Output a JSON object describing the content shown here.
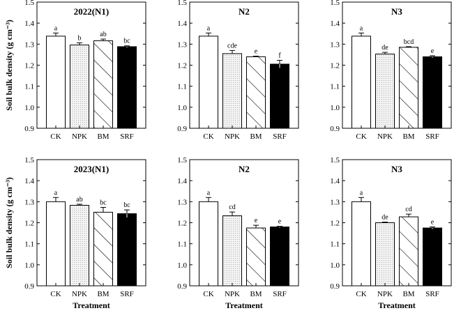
{
  "figure": {
    "ylabel": "Soil bulk density (g cm⁻³)",
    "xlabel": "Treatment"
  },
  "colors": {
    "CK": "#ffffff",
    "NPK": "#f4f4f4",
    "BM": "#ffffff",
    "SRF": "#000000",
    "stroke": "#000000"
  },
  "chart_data": [
    {
      "type": "bar",
      "title": "2022(N1)",
      "year": "2022",
      "nitrogen_level": "N1",
      "categories": [
        "CK",
        "NPK",
        "BM",
        "SRF"
      ],
      "values": [
        1.338,
        1.296,
        1.316,
        1.288
      ],
      "errors": [
        0.015,
        0.01,
        0.008,
        0.004
      ],
      "labels": [
        "a",
        "b",
        "ab",
        "bc"
      ],
      "ylim": [
        0.9,
        1.5
      ],
      "yticks": [
        "0.9",
        "1.0",
        "1.1",
        "1.2",
        "1.3",
        "1.4",
        "1.5"
      ],
      "ylabel": "Soil bulk density (g cm⁻³)",
      "xlabel": ""
    },
    {
      "type": "bar",
      "title": "N2",
      "year": "2022",
      "nitrogen_level": "N2",
      "categories": [
        "CK",
        "NPK",
        "BM",
        "SRF"
      ],
      "values": [
        1.338,
        1.255,
        1.24,
        1.205
      ],
      "errors": [
        0.015,
        0.015,
        0.003,
        0.018
      ],
      "labels": [
        "a",
        "cde",
        "e",
        "f"
      ],
      "ylim": [
        0.9,
        1.5
      ],
      "yticks": [
        "0.9",
        "1.0",
        "1.1",
        "1.2",
        "1.3",
        "1.4",
        "1.5"
      ],
      "ylabel": "",
      "xlabel": ""
    },
    {
      "type": "bar",
      "title": "N3",
      "year": "2022",
      "nitrogen_level": "N3",
      "categories": [
        "CK",
        "NPK",
        "BM",
        "SRF"
      ],
      "values": [
        1.338,
        1.253,
        1.285,
        1.24
      ],
      "errors": [
        0.015,
        0.008,
        0.003,
        0.005
      ],
      "labels": [
        "a",
        "de",
        "bcd",
        "e"
      ],
      "ylim": [
        0.9,
        1.5
      ],
      "yticks": [
        "0.9",
        "1.0",
        "1.1",
        "1.2",
        "1.3",
        "1.4",
        "1.5"
      ],
      "ylabel": "",
      "xlabel": ""
    },
    {
      "type": "bar",
      "title": "2023(N1)",
      "year": "2023",
      "nitrogen_level": "N1",
      "categories": [
        "CK",
        "NPK",
        "BM",
        "SRF"
      ],
      "values": [
        1.3,
        1.283,
        1.25,
        1.243
      ],
      "errors": [
        0.02,
        0.005,
        0.023,
        0.018
      ],
      "labels": [
        "a",
        "ab",
        "bc",
        "bc"
      ],
      "ylim": [
        0.9,
        1.5
      ],
      "yticks": [
        "0.9",
        "1.0",
        "1.1",
        "1.2",
        "1.3",
        "1.4",
        "1.5"
      ],
      "ylabel": "Soil bulk density (g cm⁻³)",
      "xlabel": "Treatment"
    },
    {
      "type": "bar",
      "title": "N2",
      "year": "2023",
      "nitrogen_level": "N2",
      "categories": [
        "CK",
        "NPK",
        "BM",
        "SRF"
      ],
      "values": [
        1.3,
        1.233,
        1.175,
        1.18
      ],
      "errors": [
        0.02,
        0.018,
        0.013,
        0.003
      ],
      "labels": [
        "a",
        "cd",
        "e",
        "e"
      ],
      "ylim": [
        0.9,
        1.5
      ],
      "yticks": [
        "0.9",
        "1.0",
        "1.1",
        "1.2",
        "1.3",
        "1.4",
        "1.5"
      ],
      "ylabel": "",
      "xlabel": "Treatment"
    },
    {
      "type": "bar",
      "title": "N3",
      "year": "2023",
      "nitrogen_level": "N3",
      "categories": [
        "CK",
        "NPK",
        "BM",
        "SRF"
      ],
      "values": [
        1.3,
        1.2,
        1.228,
        1.175
      ],
      "errors": [
        0.02,
        0.003,
        0.013,
        0.005
      ],
      "labels": [
        "a",
        "de",
        "cd",
        "e"
      ],
      "ylim": [
        0.9,
        1.5
      ],
      "yticks": [
        "0.9",
        "1.0",
        "1.1",
        "1.2",
        "1.3",
        "1.4",
        "1.5"
      ],
      "ylabel": "",
      "xlabel": "Treatment"
    }
  ]
}
